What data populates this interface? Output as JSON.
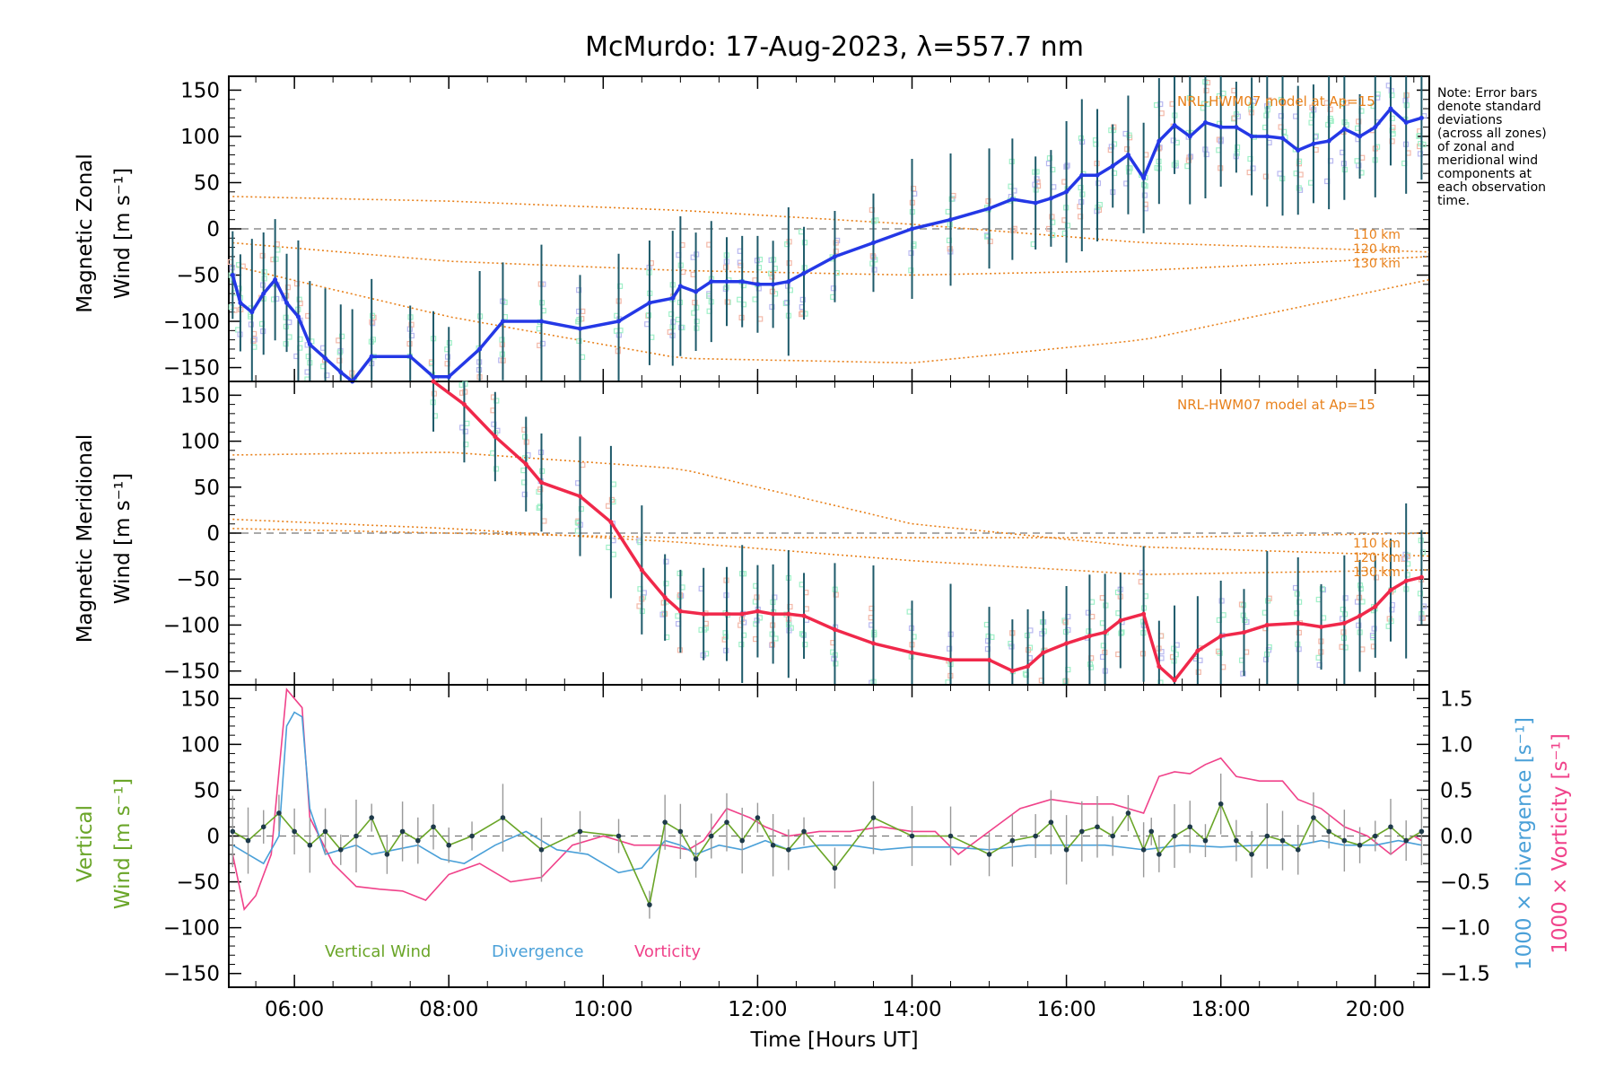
{
  "chart_data": {
    "type": "line",
    "title": "McMurdo: 17-Aug-2023, λ=557.7 nm",
    "xlabel": "Time [Hours UT]",
    "xlim": [
      5.15,
      20.7
    ],
    "x_ticks": [
      6,
      8,
      10,
      12,
      14,
      16,
      18,
      20
    ],
    "x_tick_labels": [
      "06:00",
      "08:00",
      "10:00",
      "12:00",
      "14:00",
      "16:00",
      "18:00",
      "20:00"
    ],
    "ylim": [
      -165,
      165
    ],
    "y_ticks": [
      150,
      100,
      50,
      0,
      -50,
      -100,
      -150
    ],
    "y_tick_labels": [
      "150",
      "100",
      "50",
      "0",
      "−50",
      "−100",
      "−150"
    ],
    "note": [
      "Note: Error bars",
      "denote standard",
      "deviations",
      "(across all zones)",
      "of zonal and",
      "meridional wind",
      "components at",
      "each observation",
      "time."
    ],
    "colors": {
      "zonal": "#2438e6",
      "meridional": "#f0284a",
      "vertical": "#6aa528",
      "divergence": "#4aa0d8",
      "vorticity": "#f0428a",
      "model": "#e8801a",
      "samples": "#a0f0c8",
      "errbar": "#1e5a6a"
    },
    "panels": [
      {
        "name": "zonal",
        "ylabel_line1": "Magnetic Zonal",
        "ylabel_line2": "Wind [m s⁻¹]",
        "model_label": "NRL-HWM07 model at Ap=15",
        "model_altitudes": [
          "110 km",
          "120 km",
          "130 km"
        ],
        "series": [
          {
            "name": "Zonal wind",
            "x": [
              5.2,
              5.3,
              5.45,
              5.6,
              5.75,
              5.9,
              6.05,
              6.2,
              6.4,
              6.6,
              6.75,
              7.0,
              7.5,
              7.8,
              8.0,
              8.4,
              8.7,
              9.2,
              9.7,
              10.2,
              10.6,
              10.9,
              11.0,
              11.2,
              11.4,
              11.6,
              11.8,
              12.0,
              12.2,
              12.4,
              12.6,
              13.0,
              13.5,
              14.0,
              14.5,
              15.0,
              15.3,
              15.6,
              15.8,
              16.0,
              16.2,
              16.4,
              16.6,
              16.8,
              17.0,
              17.2,
              17.4,
              17.6,
              17.8,
              18.0,
              18.2,
              18.4,
              18.6,
              18.8,
              19.0,
              19.2,
              19.4,
              19.6,
              19.8,
              20.0,
              20.2,
              20.4,
              20.6
            ],
            "values": [
              -50,
              -80,
              -90,
              -70,
              -55,
              -80,
              -95,
              -125,
              -140,
              -155,
              -165,
              -138,
              -138,
              -160,
              -160,
              -130,
              -100,
              -100,
              -108,
              -100,
              -80,
              -75,
              -62,
              -68,
              -57,
              -57,
              -57,
              -60,
              -60,
              -57,
              -48,
              -30,
              -15,
              0,
              10,
              22,
              32,
              28,
              33,
              40,
              58,
              58,
              68,
              80,
              55,
              95,
              112,
              100,
              115,
              110,
              110,
              100,
              100,
              98,
              85,
              92,
              95,
              108,
              100,
              110,
              130,
              115,
              120
            ]
          }
        ]
      },
      {
        "name": "meridional",
        "ylabel_line1": "Magnetic Meridional",
        "ylabel_line2": "Wind [m s⁻¹]",
        "model_label": "NRL-HWM07 model at Ap=15",
        "model_altitudes": [
          "110 km",
          "120 km",
          "130 km"
        ],
        "series": [
          {
            "name": "Meridional wind",
            "x": [
              7.8,
              8.2,
              8.6,
              9.0,
              9.2,
              9.7,
              10.1,
              10.5,
              10.8,
              11.0,
              11.3,
              11.6,
              11.8,
              12.0,
              12.2,
              12.4,
              12.6,
              13.0,
              13.5,
              14.0,
              14.5,
              15.0,
              15.3,
              15.5,
              15.7,
              16.0,
              16.3,
              16.5,
              16.7,
              17.0,
              17.2,
              17.4,
              17.7,
              18.0,
              18.3,
              18.6,
              19.0,
              19.3,
              19.6,
              19.8,
              20.0,
              20.2,
              20.4,
              20.6
            ],
            "values": [
              165,
              140,
              105,
              75,
              55,
              40,
              12,
              -40,
              -70,
              -85,
              -88,
              -88,
              -88,
              -85,
              -88,
              -88,
              -90,
              -105,
              -120,
              -130,
              -138,
              -138,
              -150,
              -145,
              -130,
              -120,
              -112,
              -108,
              -95,
              -88,
              -145,
              -160,
              -128,
              -112,
              -108,
              -100,
              -98,
              -102,
              -98,
              -90,
              -80,
              -62,
              -52,
              -48
            ]
          }
        ]
      },
      {
        "name": "vertical",
        "ylabel_line1": "Vertical",
        "ylabel_line2": "Wind [m s⁻¹]",
        "right_ylabel_div": "1000 × Divergence [s⁻¹]",
        "right_ylabel_vort": "1000 × Vorticity [s⁻¹]",
        "right_ylim": [
          -1.65,
          1.65
        ],
        "right_ticks": [
          1.5,
          1.0,
          0.5,
          0.0,
          -0.5,
          -1.0,
          -1.5
        ],
        "right_tick_labels": [
          "1.5",
          "1.0",
          "0.5",
          "0.0",
          "−0.5",
          "−1.0",
          "−1.5"
        ],
        "legend": [
          "Vertical Wind",
          "Divergence",
          "Vorticity"
        ],
        "series": [
          {
            "name": "Vertical Wind",
            "x": [
              5.2,
              5.4,
              5.6,
              5.8,
              6.0,
              6.2,
              6.4,
              6.6,
              6.8,
              7.0,
              7.2,
              7.4,
              7.6,
              7.8,
              8.0,
              8.3,
              8.7,
              9.2,
              9.7,
              10.2,
              10.6,
              10.8,
              11.0,
              11.2,
              11.4,
              11.6,
              11.8,
              12.0,
              12.2,
              12.4,
              12.6,
              13.0,
              13.5,
              14.0,
              14.5,
              15.0,
              15.3,
              15.6,
              15.8,
              16.0,
              16.2,
              16.4,
              16.6,
              16.8,
              17.0,
              17.1,
              17.2,
              17.4,
              17.6,
              17.8,
              18.0,
              18.2,
              18.4,
              18.6,
              18.8,
              19.0,
              19.2,
              19.4,
              19.6,
              19.8,
              20.0,
              20.2,
              20.4,
              20.6
            ],
            "values": [
              5,
              -5,
              10,
              25,
              5,
              -10,
              5,
              -15,
              0,
              20,
              -20,
              5,
              -5,
              10,
              -10,
              0,
              20,
              -15,
              5,
              0,
              -75,
              15,
              5,
              -25,
              0,
              15,
              -5,
              20,
              -10,
              -15,
              5,
              -35,
              20,
              0,
              0,
              -20,
              -5,
              0,
              15,
              -15,
              5,
              10,
              0,
              25,
              -15,
              5,
              -20,
              0,
              10,
              -5,
              35,
              -5,
              -20,
              0,
              -5,
              -15,
              20,
              5,
              -5,
              -10,
              0,
              10,
              -5,
              5
            ]
          },
          {
            "name": "Divergence",
            "x": [
              5.2,
              5.4,
              5.6,
              5.8,
              5.9,
              6.0,
              6.1,
              6.2,
              6.4,
              6.6,
              6.8,
              7.0,
              7.3,
              7.6,
              7.9,
              8.2,
              8.6,
              9.0,
              9.4,
              9.8,
              10.2,
              10.5,
              10.8,
              11.0,
              11.2,
              11.5,
              11.8,
              12.1,
              12.4,
              12.8,
              13.2,
              13.6,
              14.0,
              14.5,
              15.0,
              15.5,
              16.0,
              16.5,
              17.0,
              17.5,
              18.0,
              18.5,
              19.0,
              19.3,
              19.6,
              20.0,
              20.3,
              20.6
            ],
            "values": [
              -0.1,
              -0.2,
              -0.3,
              0.0,
              1.2,
              1.35,
              1.3,
              0.3,
              -0.2,
              -0.15,
              -0.1,
              -0.2,
              -0.15,
              -0.1,
              -0.25,
              -0.3,
              -0.1,
              0.05,
              -0.15,
              -0.2,
              -0.4,
              -0.35,
              -0.05,
              -0.1,
              -0.2,
              -0.1,
              -0.15,
              -0.05,
              -0.15,
              -0.1,
              -0.1,
              -0.15,
              -0.12,
              -0.12,
              -0.15,
              -0.1,
              -0.1,
              -0.1,
              -0.15,
              -0.1,
              -0.12,
              -0.1,
              -0.1,
              -0.05,
              -0.1,
              -0.1,
              -0.05,
              -0.1
            ]
          },
          {
            "name": "Vorticity",
            "x": [
              5.2,
              5.35,
              5.5,
              5.7,
              5.9,
              6.0,
              6.1,
              6.2,
              6.5,
              6.8,
              7.1,
              7.4,
              7.7,
              8.0,
              8.4,
              8.8,
              9.2,
              9.6,
              10.0,
              10.4,
              10.8,
              11.1,
              11.3,
              11.6,
              11.9,
              12.1,
              12.4,
              12.8,
              13.2,
              13.6,
              14.0,
              14.3,
              14.6,
              15.0,
              15.4,
              15.8,
              16.2,
              16.6,
              17.0,
              17.2,
              17.4,
              17.6,
              17.8,
              18.0,
              18.2,
              18.5,
              18.8,
              19.0,
              19.3,
              19.6,
              19.9,
              20.2,
              20.5,
              20.6
            ],
            "values": [
              -0.2,
              -0.8,
              -0.65,
              -0.2,
              1.6,
              1.5,
              1.4,
              0.2,
              -0.3,
              -0.55,
              -0.58,
              -0.6,
              -0.7,
              -0.42,
              -0.3,
              -0.5,
              -0.45,
              -0.1,
              0.0,
              -0.1,
              -0.1,
              -0.15,
              -0.05,
              0.3,
              0.2,
              0.1,
              0.0,
              0.05,
              0.05,
              0.1,
              0.05,
              0.05,
              -0.2,
              0.05,
              0.3,
              0.4,
              0.35,
              0.35,
              0.25,
              0.65,
              0.7,
              0.68,
              0.78,
              0.85,
              0.65,
              0.6,
              0.6,
              0.4,
              0.3,
              0.1,
              0.0,
              -0.2,
              0.0,
              -0.05
            ]
          }
        ]
      }
    ]
  }
}
